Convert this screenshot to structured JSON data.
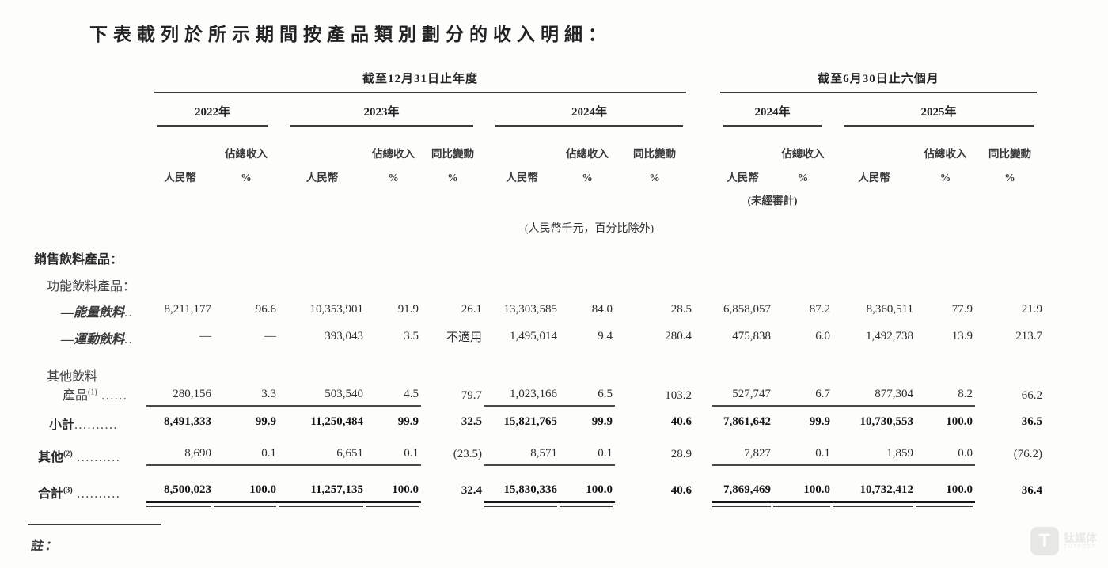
{
  "title": "下表載列於所示期間按產品類別劃分的收入明細：",
  "header": {
    "period1": "截至12月31日止年度",
    "period2": "截至6月30日止六個月",
    "years": [
      {
        "label": "2022年"
      },
      {
        "label": "2023年"
      },
      {
        "label": "2024年"
      },
      {
        "label": "2024年"
      },
      {
        "label": "2025年"
      }
    ],
    "unaudited": "(未經審計)",
    "unit_note": "(人民幣千元，百分比除外)"
  },
  "columns": [
    {
      "top": "",
      "bottom": "人民幣"
    },
    {
      "top": "佔總收入",
      "bottom": "%"
    },
    {
      "top": "",
      "bottom": "人民幣"
    },
    {
      "top": "佔總收入",
      "bottom": "%"
    },
    {
      "top": "同比變動",
      "bottom": "%"
    },
    {
      "top": "",
      "bottom": "人民幣"
    },
    {
      "top": "佔總收入",
      "bottom": "%"
    },
    {
      "top": "同比變動",
      "bottom": "%"
    },
    {
      "top": "",
      "bottom": "人民幣"
    },
    {
      "top": "佔總收入",
      "bottom": "%"
    },
    {
      "top": "",
      "bottom": "人民幣"
    },
    {
      "top": "佔總收入",
      "bottom": "%"
    },
    {
      "top": "同比變動",
      "bottom": "%"
    }
  ],
  "rows": [
    {
      "label": "銷售飲料產品：",
      "style": "section",
      "values": []
    },
    {
      "label": "功能飲料產品：",
      "style": "subsection",
      "values": []
    },
    {
      "label": "—能量飲料",
      "dots": "..",
      "style": "item",
      "values": [
        "8,211,177",
        "96.6",
        "10,353,901",
        "91.9",
        "26.1",
        "13,303,585",
        "84.0",
        "28.5",
        "6,858,057",
        "87.2",
        "8,360,511",
        "77.9",
        "21.9"
      ]
    },
    {
      "label": "—運動飲料",
      "dots": "..",
      "style": "item",
      "values": [
        "—",
        "—",
        "393,043",
        "3.5",
        "不適用",
        "1,495,014",
        "9.4",
        "280.4",
        "475,838",
        "6.0",
        "1,492,738",
        "13.9",
        "213.7"
      ]
    },
    {
      "label_top": "其他飲料",
      "label": "產品",
      "sup": "(1)",
      "dots": " ......",
      "style": "wrap",
      "rule": "single",
      "values": [
        "280,156",
        "3.3",
        "503,540",
        "4.5",
        "79.7",
        "1,023,166",
        "6.5",
        "103.2",
        "527,747",
        "6.7",
        "877,304",
        "8.2",
        "66.2"
      ]
    },
    {
      "label": "小計",
      "dots": "..........",
      "style": "subtotal",
      "values": [
        "8,491,333",
        "99.9",
        "11,250,484",
        "99.9",
        "32.5",
        "15,821,765",
        "99.9",
        "40.6",
        "7,861,642",
        "99.9",
        "10,730,553",
        "100.0",
        "36.5"
      ]
    },
    {
      "label": "其他",
      "sup": "(2)",
      "dots": " ..........",
      "style": "other",
      "rule": "single",
      "values": [
        "8,690",
        "0.1",
        "6,651",
        "0.1",
        "(23.5)",
        "8,571",
        "0.1",
        "28.9",
        "7,827",
        "0.1",
        "1,859",
        "0.0",
        "(76.2)"
      ]
    },
    {
      "label": "合計",
      "sup": "(3)",
      "dots": " ..........",
      "style": "grand",
      "rule": "double",
      "values": [
        "8,500,023",
        "100.0",
        "11,257,135",
        "100.0",
        "32.4",
        "15,830,336",
        "100.0",
        "40.6",
        "7,869,469",
        "100.0",
        "10,732,412",
        "100.0",
        "36.4"
      ]
    }
  ],
  "footer": {
    "note_label": "註："
  },
  "watermark": {
    "logo_letter": "T",
    "brand": "钛媒体",
    "brand_sub": "TMTPOST"
  },
  "colors": {
    "text": "#2e2e2e",
    "rule": "#3c3c3c",
    "background": "#fdfdfc"
  }
}
